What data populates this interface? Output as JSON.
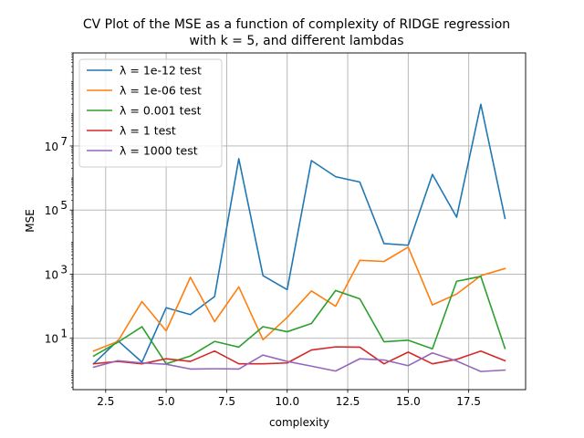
{
  "chart_data": {
    "type": "line",
    "title": [
      "CV Plot of the MSE as a function of complexity of RIDGE regression",
      "with k = 5, and different lambdas"
    ],
    "xlabel": "complexity",
    "ylabel": "MSE",
    "xlim": [
      1.15,
      19.85
    ],
    "ylim": [
      0.25,
      8000000000
    ],
    "yscale": "log",
    "grid": true,
    "legend_position": "top-left",
    "x_ticks": [
      2.5,
      5.0,
      7.5,
      10.0,
      12.5,
      15.0,
      17.5
    ],
    "x_tick_labels": [
      "2.5",
      "5.0",
      "7.5",
      "10.0",
      "12.5",
      "15.0",
      "17.5"
    ],
    "y_ticks": [
      10,
      1000,
      100000,
      10000000
    ],
    "y_tick_labels": [
      {
        "base": "10",
        "exp": "1"
      },
      {
        "base": "10",
        "exp": "3"
      },
      {
        "base": "10",
        "exp": "5"
      },
      {
        "base": "10",
        "exp": "7"
      }
    ],
    "x": [
      2,
      3,
      4,
      5,
      6,
      7,
      8,
      9,
      10,
      11,
      12,
      13,
      14,
      15,
      16,
      17,
      18,
      19
    ],
    "series": [
      {
        "name": "λ = 1e-12 test",
        "color": "#1f77b4",
        "values": [
          1.6,
          8.5,
          1.8,
          90,
          55,
          200,
          4000000,
          900,
          330,
          3500000,
          1100000,
          750000,
          9000,
          8000,
          1300000,
          60000,
          200000000,
          55000
        ]
      },
      {
        "name": "λ = 1e-06 test",
        "color": "#ff7f0e",
        "values": [
          4,
          8,
          140,
          17,
          800,
          33,
          400,
          9,
          45,
          300,
          100,
          2700,
          2500,
          7000,
          110,
          240,
          900,
          1500
        ]
      },
      {
        "name": "λ = 0.001 test",
        "color": "#2ca02c",
        "values": [
          2.8,
          7.5,
          23,
          1.6,
          2.8,
          8,
          5.3,
          23,
          16,
          29,
          310,
          170,
          7.8,
          8.7,
          4.7,
          600,
          850,
          4.8
        ]
      },
      {
        "name": "λ = 1 test",
        "color": "#d62728",
        "values": [
          1.6,
          1.9,
          1.6,
          2.3,
          1.9,
          4,
          1.6,
          1.6,
          1.7,
          4.3,
          5.4,
          5.3,
          1.6,
          3.7,
          1.6,
          2.2,
          4,
          2
        ]
      },
      {
        "name": "λ = 1000 test",
        "color": "#9467bd",
        "values": [
          1.25,
          2,
          1.7,
          1.55,
          1.1,
          1.12,
          1.1,
          3,
          1.9,
          1.35,
          0.95,
          2.3,
          2.1,
          1.4,
          3.5,
          1.95,
          0.92,
          1.02
        ]
      }
    ]
  }
}
